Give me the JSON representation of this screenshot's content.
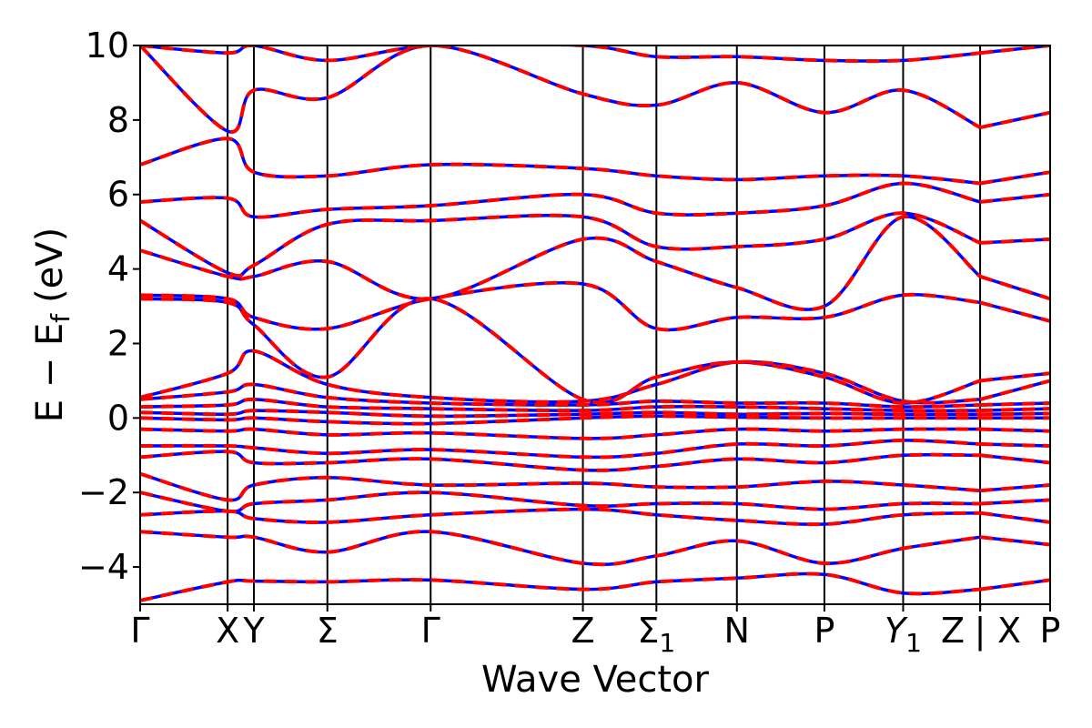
{
  "chart_data": {
    "type": "line",
    "xlabel": "Wave Vector",
    "ylabel": "E − E",
    "ylabel_subscript": "f",
    "ylabel_unit": "(eV)",
    "ylim": [
      -5,
      10
    ],
    "yticks": [
      {
        "value": 10,
        "label": "10"
      },
      {
        "value": 8,
        "label": "8"
      },
      {
        "value": 6,
        "label": "6"
      },
      {
        "value": 4,
        "label": "4"
      },
      {
        "value": 2,
        "label": "2"
      },
      {
        "value": 0,
        "label": "0"
      },
      {
        "value": -2,
        "label": "−2"
      },
      {
        "value": -4,
        "label": "−4"
      }
    ],
    "xlim": [
      0,
      10.4
    ],
    "kpoints": [
      {
        "x": 0.0,
        "label": "Γ"
      },
      {
        "x": 1.0,
        "label": "X"
      },
      {
        "x": 1.3,
        "label": "Y"
      },
      {
        "x": 2.14,
        "label": "Σ"
      },
      {
        "x": 3.32,
        "label": "Γ"
      },
      {
        "x": 5.06,
        "label": "Z"
      },
      {
        "x": 5.9,
        "label": "Σ",
        "sub": "1"
      },
      {
        "x": 6.82,
        "label": "N"
      },
      {
        "x": 7.82,
        "label": "P"
      },
      {
        "x": 8.72,
        "label": "Y",
        "sub": "1"
      },
      {
        "x": 9.6,
        "label": "Z"
      },
      {
        "x": 9.6,
        "label": "|"
      },
      {
        "x": 9.6,
        "label": "X"
      },
      {
        "x": 10.4,
        "label": "P"
      }
    ],
    "segment_break_x": 9.6,
    "series": [
      {
        "key": "reference",
        "color": "#0000ff",
        "style": "solid"
      },
      {
        "key": "model",
        "color": "#ff0000",
        "style": "dashed"
      }
    ],
    "bands": [
      {
        "x": [
          0,
          1,
          1.3,
          2.14,
          3.32,
          5.06,
          5.9,
          6.82,
          7.82,
          8.72,
          9.6,
          10.4
        ],
        "y": [
          -4.9,
          -4.4,
          -4.38,
          -4.4,
          -4.35,
          -4.6,
          -4.4,
          -4.3,
          -4.2,
          -4.7,
          -4.6,
          -4.35
        ]
      },
      {
        "x": [
          0,
          1,
          1.3,
          2.14,
          3.32,
          5.06,
          5.9,
          6.82,
          7.82,
          8.72,
          9.6,
          10.4
        ],
        "y": [
          -3.05,
          -3.2,
          -3.2,
          -3.6,
          -3.05,
          -3.9,
          -3.7,
          -3.3,
          -3.9,
          -3.5,
          -3.2,
          -3.4
        ]
      },
      {
        "x": [
          0,
          1,
          1.3,
          2.14,
          3.32,
          5.06,
          5.9,
          6.82,
          7.82,
          8.72,
          9.6,
          10.4
        ],
        "y": [
          -2.6,
          -2.5,
          -2.7,
          -2.8,
          -2.6,
          -2.45,
          -2.6,
          -2.75,
          -2.85,
          -2.6,
          -2.55,
          -2.8
        ]
      },
      {
        "x": [
          0,
          1,
          1.3,
          2.14,
          3.32,
          5.06,
          5.9,
          6.82,
          7.82,
          8.72,
          9.6,
          10.4
        ],
        "y": [
          -2.0,
          -2.5,
          -2.3,
          -2.2,
          -2.0,
          -2.35,
          -2.3,
          -2.3,
          -2.45,
          -2.3,
          -2.3,
          -2.2
        ]
      },
      {
        "x": [
          0,
          1,
          1.3,
          2.14,
          3.32,
          5.06,
          5.9,
          6.82,
          7.82,
          8.72,
          9.6,
          10.4
        ],
        "y": [
          -1.5,
          -2.2,
          -1.8,
          -1.6,
          -1.8,
          -1.75,
          -1.85,
          -1.85,
          -1.7,
          -1.8,
          -1.95,
          -1.8
        ]
      },
      {
        "x": [
          0,
          1,
          1.3,
          2.14,
          3.32,
          5.06,
          5.9,
          6.82,
          7.82,
          8.72,
          9.6,
          10.4
        ],
        "y": [
          -1.05,
          -0.9,
          -1.2,
          -1.2,
          -1.1,
          -1.4,
          -1.3,
          -1.1,
          -1.2,
          -1.0,
          -1.0,
          -1.2
        ]
      },
      {
        "x": [
          0,
          1,
          1.3,
          2.14,
          3.32,
          5.06,
          5.9,
          6.82,
          7.82,
          8.72,
          9.6,
          10.4
        ],
        "y": [
          -0.75,
          -0.75,
          -0.8,
          -0.95,
          -0.85,
          -1.05,
          -0.95,
          -0.7,
          -0.75,
          -0.6,
          -0.7,
          -0.75
        ]
      },
      {
        "x": [
          0,
          1,
          1.3,
          2.14,
          3.32,
          5.06,
          5.9,
          6.82,
          7.82,
          8.72,
          9.6,
          10.4
        ],
        "y": [
          -0.3,
          -0.35,
          -0.3,
          -0.45,
          -0.4,
          -0.55,
          -0.45,
          -0.3,
          -0.35,
          -0.3,
          -0.3,
          -0.35
        ]
      },
      {
        "x": [
          0,
          1,
          1.3,
          2.14,
          3.32,
          5.06,
          5.9,
          6.82,
          7.82,
          8.72,
          9.6,
          10.4
        ],
        "y": [
          0.0,
          -0.05,
          0.0,
          -0.1,
          -0.15,
          0.0,
          0.05,
          0.02,
          0.0,
          0.0,
          0.0,
          0.0
        ]
      },
      {
        "x": [
          0,
          1,
          1.3,
          2.14,
          3.32,
          5.06,
          5.9,
          6.82,
          7.82,
          8.72,
          9.6,
          10.4
        ],
        "y": [
          0.15,
          0.1,
          0.2,
          0.15,
          0.05,
          0.1,
          0.15,
          0.1,
          0.12,
          0.1,
          0.1,
          0.12
        ]
      },
      {
        "x": [
          0,
          1,
          1.3,
          2.14,
          3.32,
          5.06,
          5.9,
          6.82,
          7.82,
          8.72,
          9.6,
          10.4
        ],
        "y": [
          0.3,
          0.35,
          0.5,
          0.3,
          0.25,
          0.2,
          0.3,
          0.3,
          0.25,
          0.2,
          0.2,
          0.25
        ]
      },
      {
        "x": [
          0,
          1,
          1.3,
          2.14,
          3.32,
          5.06,
          5.9,
          6.82,
          7.82,
          8.72,
          9.6,
          10.4
        ],
        "y": [
          0.5,
          0.7,
          0.9,
          0.55,
          0.4,
          0.35,
          0.45,
          0.4,
          0.4,
          0.3,
          0.35,
          0.4
        ]
      },
      {
        "x": [
          0,
          1,
          1.3,
          2.14,
          3.32,
          5.06,
          5.9,
          6.82,
          7.82,
          8.72,
          9.6,
          10.4
        ],
        "y": [
          0.55,
          1.2,
          1.8,
          0.9,
          0.55,
          0.45,
          0.9,
          1.5,
          1.2,
          0.45,
          0.5,
          1.0
        ]
      },
      {
        "x": [
          0,
          1,
          1.3,
          2.14,
          3.32,
          5.06,
          5.9,
          6.82,
          7.82,
          8.72,
          9.6,
          10.4
        ],
        "y": [
          3.2,
          3.1,
          2.5,
          1.1,
          3.2,
          0.5,
          1.1,
          1.5,
          1.1,
          0.4,
          1.0,
          1.2
        ]
      },
      {
        "x": [
          0,
          1,
          1.3,
          2.14,
          3.32,
          5.06,
          5.9,
          6.82,
          7.82,
          8.72,
          9.6,
          10.4
        ],
        "y": [
          3.3,
          3.2,
          2.7,
          2.4,
          3.2,
          3.6,
          2.4,
          2.7,
          2.7,
          3.3,
          3.1,
          2.6
        ]
      },
      {
        "x": [
          0,
          1,
          1.3,
          2.14,
          3.32,
          5.06,
          5.9,
          6.82,
          7.82,
          8.72,
          9.6,
          10.4
        ],
        "y": [
          4.5,
          3.8,
          3.8,
          4.2,
          3.2,
          4.8,
          4.2,
          3.5,
          3.0,
          5.4,
          3.8,
          3.2
        ]
      },
      {
        "x": [
          0,
          1,
          1.3,
          2.14,
          3.32,
          5.06,
          5.9,
          6.82,
          7.82,
          8.72,
          9.6,
          10.4
        ],
        "y": [
          5.3,
          3.9,
          4.1,
          5.2,
          5.3,
          5.4,
          4.6,
          4.6,
          4.8,
          5.5,
          4.7,
          4.8
        ]
      },
      {
        "x": [
          0,
          1,
          1.3,
          2.14,
          3.32,
          5.06,
          5.9,
          6.82,
          7.82,
          8.72,
          9.6,
          10.4
        ],
        "y": [
          5.8,
          5.9,
          5.4,
          5.6,
          5.7,
          6.0,
          5.5,
          5.5,
          5.7,
          6.3,
          5.8,
          6.0
        ]
      },
      {
        "x": [
          0,
          1,
          1.3,
          2.14,
          3.32,
          5.06,
          5.9,
          6.82,
          7.82,
          8.72,
          9.6,
          10.4
        ],
        "y": [
          6.8,
          7.5,
          6.6,
          6.5,
          6.8,
          6.7,
          6.5,
          6.4,
          6.5,
          6.5,
          6.3,
          6.6
        ]
      },
      {
        "x": [
          0,
          1,
          1.3,
          2.14,
          3.32,
          5.06,
          5.9,
          6.82,
          7.82,
          8.72,
          9.6,
          10.4
        ],
        "y": [
          10.0,
          7.7,
          8.8,
          8.6,
          10.0,
          8.7,
          8.4,
          9.0,
          8.2,
          8.8,
          7.8,
          8.2
        ]
      },
      {
        "x": [
          0,
          1,
          1.3,
          2.14,
          3.32,
          5.06,
          5.9,
          6.82,
          7.82,
          8.72,
          9.6,
          10.4
        ],
        "y": [
          10.0,
          9.8,
          10.0,
          9.6,
          10.0,
          10.0,
          9.7,
          9.7,
          9.6,
          9.6,
          9.8,
          10.0
        ]
      }
    ]
  }
}
